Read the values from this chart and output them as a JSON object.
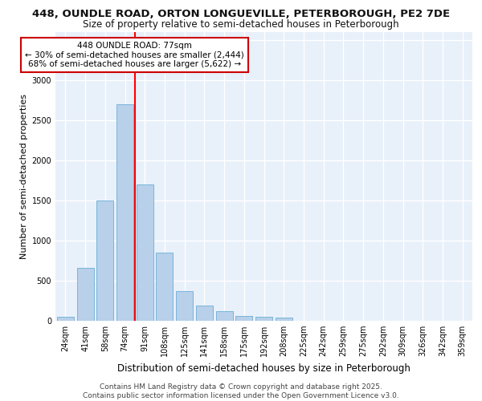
{
  "title_line1": "448, OUNDLE ROAD, ORTON LONGUEVILLE, PETERBOROUGH, PE2 7DE",
  "title_line2": "Size of property relative to semi-detached houses in Peterborough",
  "xlabel": "Distribution of semi-detached houses by size in Peterborough",
  "ylabel": "Number of semi-detached properties",
  "categories": [
    "24sqm",
    "41sqm",
    "58sqm",
    "74sqm",
    "91sqm",
    "108sqm",
    "125sqm",
    "141sqm",
    "158sqm",
    "175sqm",
    "192sqm",
    "208sqm",
    "225sqm",
    "242sqm",
    "259sqm",
    "275sqm",
    "292sqm",
    "309sqm",
    "326sqm",
    "342sqm",
    "359sqm"
  ],
  "values": [
    55,
    660,
    1500,
    2700,
    1700,
    850,
    375,
    190,
    120,
    65,
    50,
    40,
    0,
    0,
    0,
    0,
    0,
    0,
    0,
    0,
    0
  ],
  "bar_color": "#b8d0ea",
  "bar_edge_color": "#6aaed6",
  "red_line_x": 3.5,
  "annotation_text": "448 OUNDLE ROAD: 77sqm\n← 30% of semi-detached houses are smaller (2,444)\n68% of semi-detached houses are larger (5,622) →",
  "annotation_box_color": "#ffffff",
  "annotation_box_edge": "#cc0000",
  "ylim": [
    0,
    3600
  ],
  "yticks": [
    0,
    500,
    1000,
    1500,
    2000,
    2500,
    3000,
    3500
  ],
  "background_color": "#e8f0fa",
  "grid_color": "#ffffff",
  "footer_line1": "Contains HM Land Registry data © Crown copyright and database right 2025.",
  "footer_line2": "Contains public sector information licensed under the Open Government Licence v3.0.",
  "title_fontsize": 9.5,
  "subtitle_fontsize": 8.5,
  "axis_label_fontsize": 8,
  "tick_fontsize": 7,
  "annotation_fontsize": 7.5,
  "footer_fontsize": 6.5
}
